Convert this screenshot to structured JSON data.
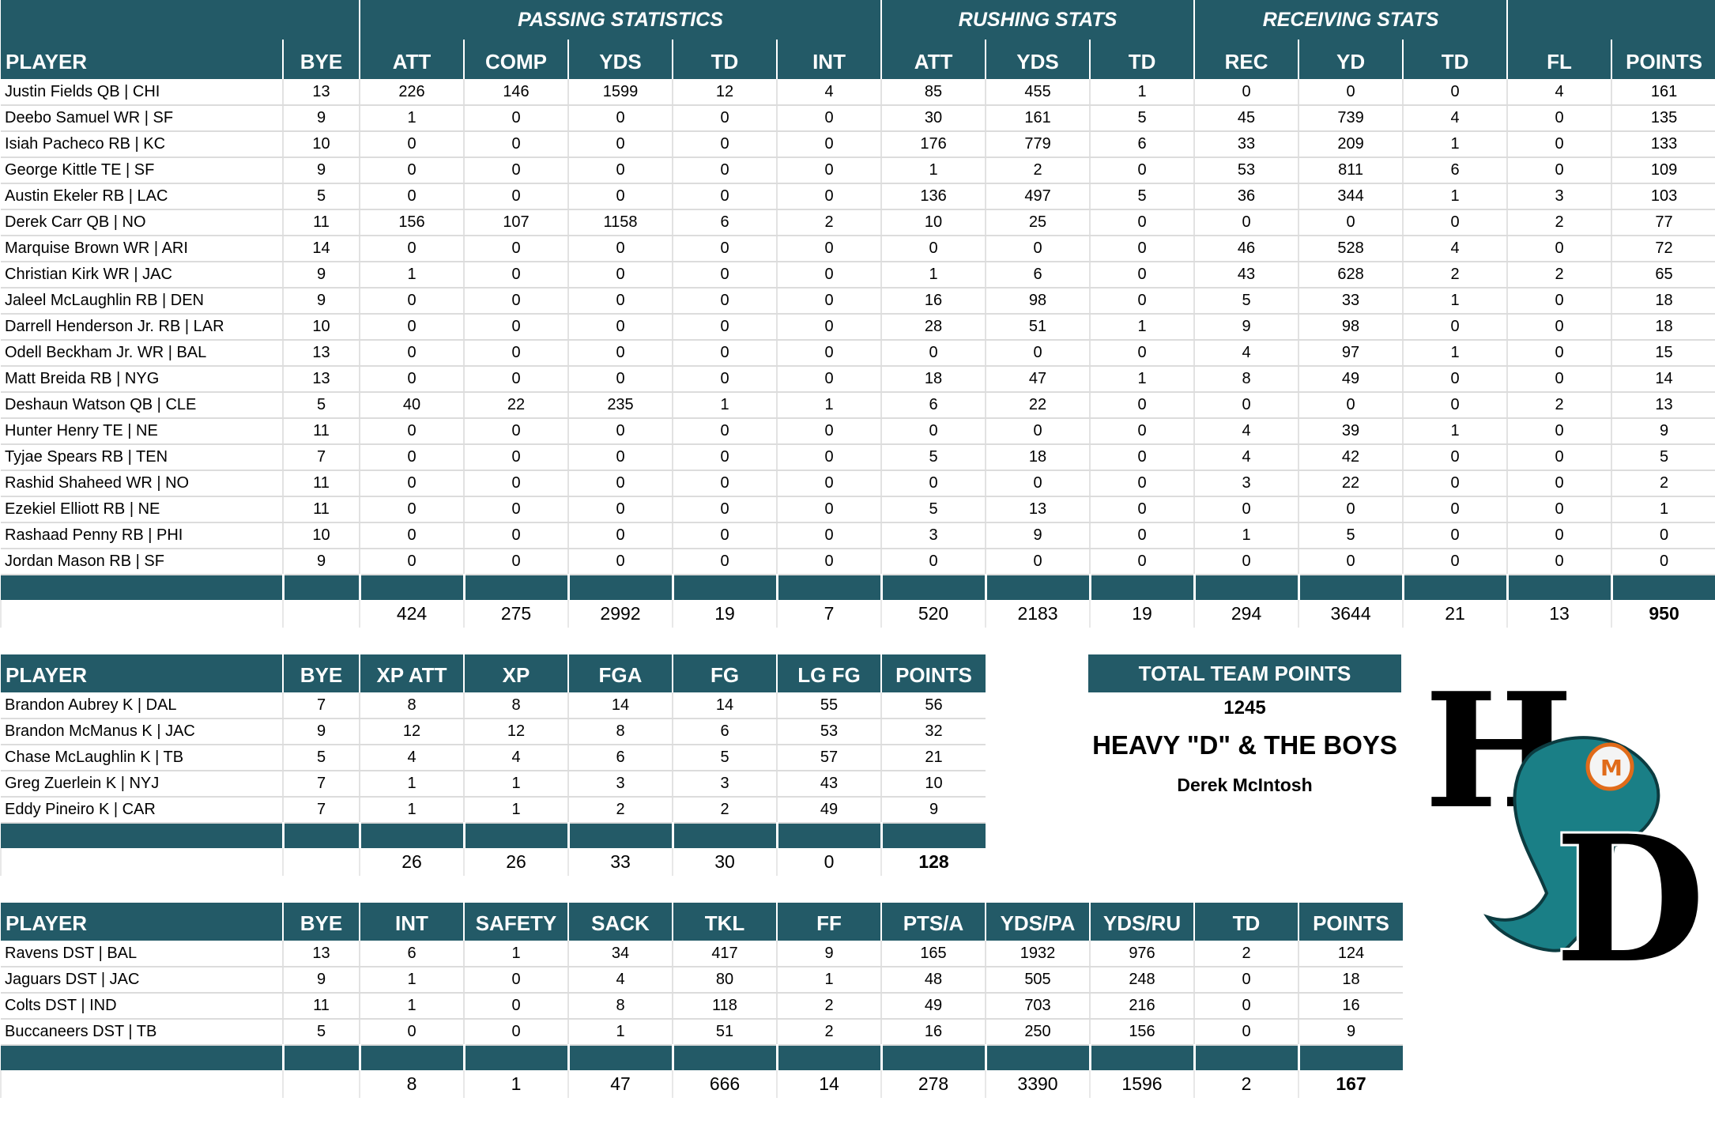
{
  "offense": {
    "groups": [
      "PASSING STATISTICS",
      "RUSHING STATS",
      "RECEIVING STATS"
    ],
    "headers": [
      "PLAYER",
      "BYE",
      "ATT",
      "COMP",
      "YDS",
      "TD",
      "INT",
      "ATT",
      "YDS",
      "TD",
      "REC",
      "YD",
      "TD",
      "FL",
      "POINTS"
    ],
    "rows": [
      [
        "Justin Fields QB | CHI",
        "13",
        "226",
        "146",
        "1599",
        "12",
        "4",
        "85",
        "455",
        "1",
        "0",
        "0",
        "0",
        "4",
        "161"
      ],
      [
        "Deebo Samuel WR | SF",
        "9",
        "1",
        "0",
        "0",
        "0",
        "0",
        "30",
        "161",
        "5",
        "45",
        "739",
        "4",
        "0",
        "135"
      ],
      [
        "Isiah Pacheco RB | KC",
        "10",
        "0",
        "0",
        "0",
        "0",
        "0",
        "176",
        "779",
        "6",
        "33",
        "209",
        "1",
        "0",
        "133"
      ],
      [
        "George Kittle TE | SF",
        "9",
        "0",
        "0",
        "0",
        "0",
        "0",
        "1",
        "2",
        "0",
        "53",
        "811",
        "6",
        "0",
        "109"
      ],
      [
        "Austin Ekeler RB | LAC",
        "5",
        "0",
        "0",
        "0",
        "0",
        "0",
        "136",
        "497",
        "5",
        "36",
        "344",
        "1",
        "3",
        "103"
      ],
      [
        "Derek Carr QB | NO",
        "11",
        "156",
        "107",
        "1158",
        "6",
        "2",
        "10",
        "25",
        "0",
        "0",
        "0",
        "0",
        "2",
        "77"
      ],
      [
        "Marquise Brown WR | ARI",
        "14",
        "0",
        "0",
        "0",
        "0",
        "0",
        "0",
        "0",
        "0",
        "46",
        "528",
        "4",
        "0",
        "72"
      ],
      [
        "Christian Kirk WR | JAC",
        "9",
        "1",
        "0",
        "0",
        "0",
        "0",
        "1",
        "6",
        "0",
        "43",
        "628",
        "2",
        "2",
        "65"
      ],
      [
        "Jaleel McLaughlin RB | DEN",
        "9",
        "0",
        "0",
        "0",
        "0",
        "0",
        "16",
        "98",
        "0",
        "5",
        "33",
        "1",
        "0",
        "18"
      ],
      [
        "Darrell Henderson Jr. RB | LAR",
        "10",
        "0",
        "0",
        "0",
        "0",
        "0",
        "28",
        "51",
        "1",
        "9",
        "98",
        "0",
        "0",
        "18"
      ],
      [
        "Odell Beckham Jr. WR | BAL",
        "13",
        "0",
        "0",
        "0",
        "0",
        "0",
        "0",
        "0",
        "0",
        "4",
        "97",
        "1",
        "0",
        "15"
      ],
      [
        "Matt Breida RB | NYG",
        "13",
        "0",
        "0",
        "0",
        "0",
        "0",
        "18",
        "47",
        "1",
        "8",
        "49",
        "0",
        "0",
        "14"
      ],
      [
        "Deshaun Watson QB | CLE",
        "5",
        "40",
        "22",
        "235",
        "1",
        "1",
        "6",
        "22",
        "0",
        "0",
        "0",
        "0",
        "2",
        "13"
      ],
      [
        "Hunter Henry TE | NE",
        "11",
        "0",
        "0",
        "0",
        "0",
        "0",
        "0",
        "0",
        "0",
        "4",
        "39",
        "1",
        "0",
        "9"
      ],
      [
        "Tyjae Spears RB | TEN",
        "7",
        "0",
        "0",
        "0",
        "0",
        "0",
        "5",
        "18",
        "0",
        "4",
        "42",
        "0",
        "0",
        "5"
      ],
      [
        "Rashid Shaheed WR | NO",
        "11",
        "0",
        "0",
        "0",
        "0",
        "0",
        "0",
        "0",
        "0",
        "3",
        "22",
        "0",
        "0",
        "2"
      ],
      [
        "Ezekiel Elliott RB | NE",
        "11",
        "0",
        "0",
        "0",
        "0",
        "0",
        "5",
        "13",
        "0",
        "0",
        "0",
        "0",
        "0",
        "1"
      ],
      [
        "Rashaad Penny RB | PHI",
        "10",
        "0",
        "0",
        "0",
        "0",
        "0",
        "3",
        "9",
        "0",
        "1",
        "5",
        "0",
        "0",
        "0"
      ],
      [
        "Jordan Mason RB | SF",
        "9",
        "0",
        "0",
        "0",
        "0",
        "0",
        "0",
        "0",
        "0",
        "0",
        "0",
        "0",
        "0",
        "0"
      ]
    ],
    "totals": [
      "",
      "",
      "424",
      "275",
      "2992",
      "19",
      "7",
      "520",
      "2183",
      "19",
      "294",
      "3644",
      "21",
      "13",
      "950"
    ]
  },
  "kickers": {
    "headers": [
      "PLAYER",
      "BYE",
      "XP ATT",
      "XP",
      "FGA",
      "FG",
      "LG FG",
      "POINTS"
    ],
    "rows": [
      [
        "Brandon Aubrey K | DAL",
        "7",
        "8",
        "8",
        "14",
        "14",
        "55",
        "56"
      ],
      [
        "Brandon McManus K | JAC",
        "9",
        "12",
        "12",
        "8",
        "6",
        "53",
        "32"
      ],
      [
        "Chase McLaughlin K | TB",
        "5",
        "4",
        "4",
        "6",
        "5",
        "57",
        "21"
      ],
      [
        "Greg Zuerlein K | NYJ",
        "7",
        "1",
        "1",
        "3",
        "3",
        "43",
        "10"
      ],
      [
        "Eddy Pineiro K | CAR",
        "7",
        "1",
        "1",
        "2",
        "2",
        "49",
        "9"
      ]
    ],
    "totals": [
      "",
      "",
      "26",
      "26",
      "33",
      "30",
      "0",
      "128"
    ]
  },
  "defense": {
    "headers": [
      "PLAYER",
      "BYE",
      "INT",
      "SAFETY",
      "SACK",
      "TKL",
      "FF",
      "PTS/A",
      "YDS/PA",
      "YDS/RU",
      "TD",
      "POINTS"
    ],
    "rows": [
      [
        "Ravens DST | BAL",
        "13",
        "6",
        "1",
        "34",
        "417",
        "9",
        "165",
        "1932",
        "976",
        "2",
        "124"
      ],
      [
        "Jaguars DST | JAC",
        "9",
        "1",
        "0",
        "4",
        "80",
        "1",
        "48",
        "505",
        "248",
        "0",
        "18"
      ],
      [
        "Colts DST | IND",
        "11",
        "1",
        "0",
        "8",
        "118",
        "2",
        "49",
        "703",
        "216",
        "0",
        "16"
      ],
      [
        "Buccaneers DST | TB",
        "5",
        "0",
        "0",
        "1",
        "51",
        "2",
        "16",
        "250",
        "156",
        "0",
        "9"
      ]
    ],
    "totals": [
      "",
      "",
      "8",
      "1",
      "47",
      "666",
      "14",
      "278",
      "3390",
      "1596",
      "2",
      "167"
    ]
  },
  "team": {
    "header": "TOTAL TEAM POINTS",
    "points": "1245",
    "name": "HEAVY \"D\" & THE BOYS",
    "owner": "Derek McIntosh"
  },
  "logo": {
    "text": "HD",
    "helmet_letter": "M"
  },
  "colors": {
    "header": "#235a67",
    "logo_teal": "#1a7f86"
  }
}
